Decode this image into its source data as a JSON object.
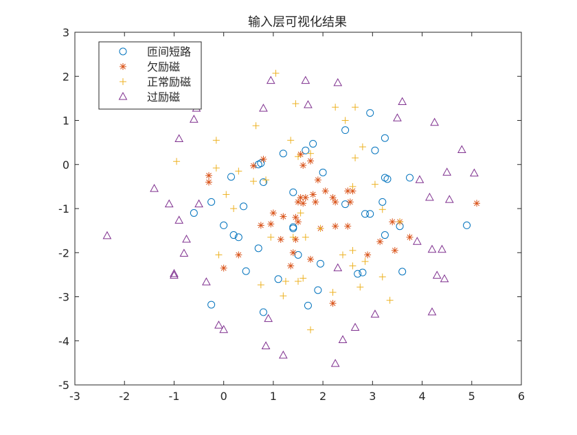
{
  "chart_data": {
    "type": "scatter",
    "title": "输入层可视化结果",
    "xlabel": "",
    "ylabel": "",
    "xlim": [
      -3,
      6
    ],
    "ylim": [
      -5,
      3
    ],
    "xticks": [
      "-3",
      "-2",
      "-1",
      "0",
      "1",
      "2",
      "3",
      "4",
      "5",
      "6"
    ],
    "yticks": [
      "3",
      "2",
      "1",
      "0",
      "-1",
      "-2",
      "-3",
      "-4",
      "-5"
    ],
    "grid": false,
    "legend_position": "top-left",
    "series": [
      {
        "name": "匝间短路",
        "marker": "circle",
        "color": "#0072BD",
        "points": [
          [
            2.95,
            1.17
          ],
          [
            2.45,
            0.78
          ],
          [
            3.25,
            0.6
          ],
          [
            1.8,
            0.47
          ],
          [
            1.65,
            0.32
          ],
          [
            1.2,
            0.25
          ],
          [
            3.05,
            0.32
          ],
          [
            0.75,
            0.03
          ],
          [
            0.7,
            0.0
          ],
          [
            2.0,
            -0.18
          ],
          [
            3.25,
            -0.3
          ],
          [
            3.3,
            -0.33
          ],
          [
            3.75,
            -0.3
          ],
          [
            0.15,
            -0.28
          ],
          [
            0.8,
            -0.4
          ],
          [
            1.4,
            -0.63
          ],
          [
            2.45,
            -0.9
          ],
          [
            3.2,
            -0.85
          ],
          [
            -0.25,
            -0.85
          ],
          [
            0.4,
            -0.95
          ],
          [
            -0.6,
            -1.1
          ],
          [
            2.85,
            -1.12
          ],
          [
            2.95,
            -1.12
          ],
          [
            3.55,
            -1.4
          ],
          [
            4.9,
            -1.38
          ],
          [
            0.0,
            -1.38
          ],
          [
            1.4,
            -1.42
          ],
          [
            1.4,
            -1.45
          ],
          [
            0.2,
            -1.6
          ],
          [
            0.3,
            -1.65
          ],
          [
            3.25,
            -1.6
          ],
          [
            0.7,
            -1.9
          ],
          [
            1.5,
            -2.05
          ],
          [
            1.95,
            -2.25
          ],
          [
            0.45,
            -2.42
          ],
          [
            2.8,
            -2.45
          ],
          [
            2.7,
            -2.48
          ],
          [
            3.6,
            -2.43
          ],
          [
            1.1,
            -2.6
          ],
          [
            1.9,
            -2.85
          ],
          [
            -0.25,
            -3.18
          ],
          [
            1.7,
            -3.2
          ],
          [
            0.8,
            -3.35
          ]
        ]
      },
      {
        "name": "欠励磁",
        "marker": "asterisk",
        "color": "#D95319",
        "points": [
          [
            1.55,
            0.23
          ],
          [
            1.6,
            -0.02
          ],
          [
            0.8,
            0.12
          ],
          [
            1.75,
            0.08
          ],
          [
            0.6,
            -0.03
          ],
          [
            -0.3,
            -0.25
          ],
          [
            -0.3,
            -0.4
          ],
          [
            1.9,
            -0.35
          ],
          [
            2.5,
            -0.6
          ],
          [
            1.55,
            -0.75
          ],
          [
            1.65,
            -0.75
          ],
          [
            1.8,
            -0.68
          ],
          [
            2.05,
            -0.6
          ],
          [
            2.2,
            -0.75
          ],
          [
            2.6,
            -0.6
          ],
          [
            1.5,
            -0.85
          ],
          [
            1.6,
            -0.88
          ],
          [
            1.85,
            -0.85
          ],
          [
            2.25,
            -0.85
          ],
          [
            2.55,
            -0.85
          ],
          [
            1.0,
            -1.1
          ],
          [
            1.2,
            -1.18
          ],
          [
            1.45,
            -1.2
          ],
          [
            0.75,
            -1.38
          ],
          [
            0.95,
            -1.35
          ],
          [
            1.5,
            -1.3
          ],
          [
            1.95,
            -1.45
          ],
          [
            2.25,
            -1.4
          ],
          [
            2.5,
            -1.4
          ],
          [
            3.4,
            -1.3
          ],
          [
            3.55,
            -1.3
          ],
          [
            1.15,
            -1.7
          ],
          [
            1.45,
            -1.7
          ],
          [
            3.15,
            -1.75
          ],
          [
            3.75,
            -1.65
          ],
          [
            1.4,
            -2.0
          ],
          [
            1.75,
            -2.15
          ],
          [
            2.9,
            -2.05
          ],
          [
            0.3,
            -2.05
          ],
          [
            3.45,
            -1.95
          ],
          [
            0.0,
            -2.35
          ],
          [
            1.35,
            -2.3
          ],
          [
            2.2,
            -3.15
          ],
          [
            5.1,
            -0.88
          ]
        ]
      },
      {
        "name": "正常励磁",
        "marker": "plus",
        "color": "#EDB120",
        "points": [
          [
            1.05,
            2.07
          ],
          [
            2.25,
            1.3
          ],
          [
            2.65,
            1.3
          ],
          [
            1.45,
            1.38
          ],
          [
            2.45,
            1.0
          ],
          [
            0.65,
            0.88
          ],
          [
            -0.15,
            0.55
          ],
          [
            1.35,
            0.55
          ],
          [
            1.75,
            0.25
          ],
          [
            2.8,
            0.4
          ],
          [
            2.65,
            0.15
          ],
          [
            1.5,
            0.18
          ],
          [
            -0.95,
            0.07
          ],
          [
            -0.15,
            -0.08
          ],
          [
            0.3,
            -0.15
          ],
          [
            0.85,
            -0.35
          ],
          [
            0.6,
            -0.38
          ],
          [
            2.6,
            -0.5
          ],
          [
            3.05,
            -0.45
          ],
          [
            0.05,
            -0.68
          ],
          [
            0.2,
            -1.0
          ],
          [
            1.55,
            -1.1
          ],
          [
            3.2,
            -1.02
          ],
          [
            1.95,
            -1.45
          ],
          [
            3.55,
            -1.3
          ],
          [
            0.95,
            -1.65
          ],
          [
            1.4,
            -1.65
          ],
          [
            1.65,
            -1.65
          ],
          [
            2.6,
            -1.95
          ],
          [
            2.4,
            -2.05
          ],
          [
            -0.1,
            -2.05
          ],
          [
            2.6,
            -2.3
          ],
          [
            2.85,
            -2.2
          ],
          [
            0.75,
            -2.73
          ],
          [
            1.5,
            -2.65
          ],
          [
            1.25,
            -2.65
          ],
          [
            1.6,
            -2.58
          ],
          [
            2.75,
            -2.78
          ],
          [
            3.2,
            -2.55
          ],
          [
            2.2,
            -2.9
          ],
          [
            1.2,
            -2.98
          ],
          [
            3.35,
            -3.08
          ],
          [
            1.75,
            -3.75
          ]
        ]
      },
      {
        "name": "过励磁",
        "marker": "triangle",
        "color": "#7E2F8E",
        "points": [
          [
            0.95,
            1.9
          ],
          [
            1.65,
            1.9
          ],
          [
            2.3,
            1.85
          ],
          [
            3.6,
            1.42
          ],
          [
            1.7,
            1.35
          ],
          [
            0.8,
            1.27
          ],
          [
            -0.55,
            1.27
          ],
          [
            -0.6,
            1.02
          ],
          [
            3.5,
            1.05
          ],
          [
            4.25,
            0.95
          ],
          [
            -0.9,
            0.58
          ],
          [
            4.8,
            0.33
          ],
          [
            4.5,
            -0.18
          ],
          [
            5.05,
            -0.2
          ],
          [
            3.95,
            -0.35
          ],
          [
            -1.4,
            -0.55
          ],
          [
            4.15,
            -0.75
          ],
          [
            4.55,
            -0.8
          ],
          [
            -1.1,
            -0.9
          ],
          [
            -0.5,
            -0.9
          ],
          [
            -0.9,
            -1.27
          ],
          [
            -0.75,
            -1.7
          ],
          [
            3.9,
            -1.75
          ],
          [
            4.2,
            -1.93
          ],
          [
            4.4,
            -1.93
          ],
          [
            -0.8,
            -2.02
          ],
          [
            -2.35,
            -1.62
          ],
          [
            -1.0,
            -2.48
          ],
          [
            -1.0,
            -2.52
          ],
          [
            4.3,
            -2.52
          ],
          [
            4.45,
            -2.6
          ],
          [
            -0.35,
            -2.67
          ],
          [
            2.3,
            -2.35
          ],
          [
            4.2,
            -3.35
          ],
          [
            3.05,
            -3.4
          ],
          [
            0.9,
            -3.5
          ],
          [
            -0.1,
            -3.65
          ],
          [
            0.0,
            -3.75
          ],
          [
            2.65,
            -3.7
          ],
          [
            2.4,
            -3.98
          ],
          [
            0.85,
            -4.12
          ],
          [
            1.2,
            -4.33
          ],
          [
            2.25,
            -4.52
          ]
        ]
      }
    ]
  }
}
